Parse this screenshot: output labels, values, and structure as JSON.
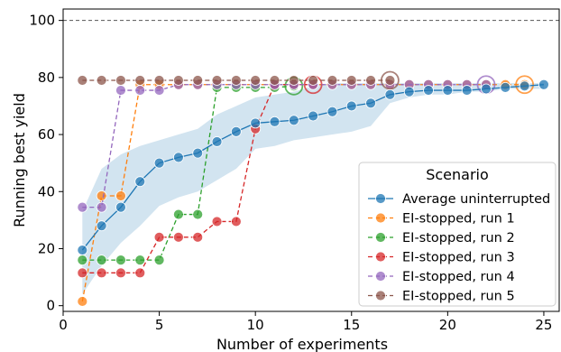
{
  "chart_data": {
    "type": "line",
    "title": "",
    "xlabel": "Number of experiments",
    "ylabel": "Running best yield",
    "xlim": [
      0,
      25.8
    ],
    "ylim": [
      -2,
      104
    ],
    "xticks": [
      0,
      5,
      10,
      15,
      20,
      25
    ],
    "yticks": [
      0,
      20,
      40,
      60,
      80,
      100
    ],
    "reference_line": {
      "y": 100,
      "style": "dashed",
      "color": "#555555"
    },
    "grid": false,
    "legend": {
      "title": "Scenario",
      "placement": "lower-right"
    },
    "band": {
      "series": "Average uninterrupted",
      "x": [
        1,
        2,
        3,
        4,
        5,
        6,
        7,
        8,
        9,
        10,
        11,
        12,
        13,
        14,
        15,
        16,
        17,
        18,
        19,
        20,
        21,
        22,
        23,
        24,
        25
      ],
      "lower": [
        4,
        14,
        22,
        28,
        35,
        38,
        40,
        44,
        48,
        55,
        56,
        58,
        59,
        60,
        61,
        63,
        71,
        73,
        74,
        74,
        75,
        75,
        76,
        76,
        76
      ],
      "upper": [
        33,
        48,
        53,
        56,
        58,
        60,
        62,
        67,
        70,
        73,
        74,
        75,
        77,
        78,
        78,
        78,
        78,
        78,
        78,
        78,
        78,
        78,
        78,
        78,
        78
      ],
      "color": "#1f77b4"
    },
    "series": [
      {
        "name": "Average uninterrupted",
        "color": "#1f77b4",
        "line": "solid",
        "x": [
          1,
          2,
          3,
          4,
          5,
          6,
          7,
          8,
          9,
          10,
          11,
          12,
          13,
          14,
          15,
          16,
          17,
          18,
          19,
          20,
          21,
          22,
          23,
          24,
          25
        ],
        "y": [
          19.5,
          28,
          34.5,
          43.5,
          50,
          52,
          53.5,
          57.5,
          61,
          64,
          64.5,
          65,
          66.5,
          68,
          70,
          71,
          74,
          75,
          75.5,
          75.5,
          75.5,
          76,
          76.5,
          77,
          77.5
        ]
      },
      {
        "name": "EI-stopped, run 1",
        "color": "#ff7f0e",
        "line": "dashed",
        "x": [
          1,
          2,
          3,
          4,
          5,
          6,
          7,
          8,
          9,
          10,
          11,
          12,
          13,
          14,
          15,
          16,
          17,
          18,
          19,
          20,
          21,
          22,
          23,
          24
        ],
        "y": [
          1.5,
          38.5,
          38.5,
          77.5,
          77.5,
          77.5,
          77.5,
          77.5,
          77.5,
          77.5,
          77.5,
          77.5,
          77.5,
          77.5,
          77.5,
          77.5,
          77.5,
          77.5,
          77.5,
          77.5,
          77.5,
          77.5,
          77.5,
          77.5
        ],
        "stop_x": 24
      },
      {
        "name": "EI-stopped, run 2",
        "color": "#2ca02c",
        "line": "dashed",
        "x": [
          1,
          2,
          3,
          4,
          5,
          6,
          7,
          8,
          9,
          10,
          11,
          12
        ],
        "y": [
          16,
          16,
          16,
          16,
          16,
          32,
          32,
          76.5,
          76.5,
          76.5,
          76.5,
          77
        ],
        "stop_x": 12
      },
      {
        "name": "EI-stopped, run 3",
        "color": "#d62728",
        "line": "dashed",
        "x": [
          1,
          2,
          3,
          4,
          5,
          6,
          7,
          8,
          9,
          10,
          11,
          12,
          13
        ],
        "y": [
          11.5,
          11.5,
          11.5,
          11.5,
          24,
          24,
          24,
          29.5,
          29.5,
          62,
          77.5,
          77.5,
          77.5
        ],
        "stop_x": 13
      },
      {
        "name": "EI-stopped, run 4",
        "color": "#9467bd",
        "line": "dashed",
        "x": [
          1,
          2,
          3,
          4,
          5,
          6,
          7,
          8,
          9,
          10,
          11,
          12,
          13,
          14,
          15,
          16,
          17,
          18,
          19,
          20,
          21,
          22
        ],
        "y": [
          34.5,
          34.5,
          75.5,
          75.5,
          75.5,
          77.5,
          77.5,
          77.5,
          77.5,
          77.5,
          77.5,
          77.5,
          77.5,
          77.5,
          77.5,
          77.5,
          77.5,
          77.5,
          77.5,
          77.5,
          77.5,
          77.5
        ],
        "stop_x": 22
      },
      {
        "name": "EI-stopped, run 5",
        "color": "#8c564b",
        "line": "dashed",
        "x": [
          1,
          2,
          3,
          4,
          5,
          6,
          7,
          8,
          9,
          10,
          11,
          12,
          13,
          14,
          15,
          16,
          17
        ],
        "y": [
          79,
          79,
          79,
          79,
          79,
          79,
          79,
          79,
          79,
          79,
          79,
          79,
          79,
          79,
          79,
          79,
          79
        ],
        "stop_x": 17
      }
    ]
  }
}
